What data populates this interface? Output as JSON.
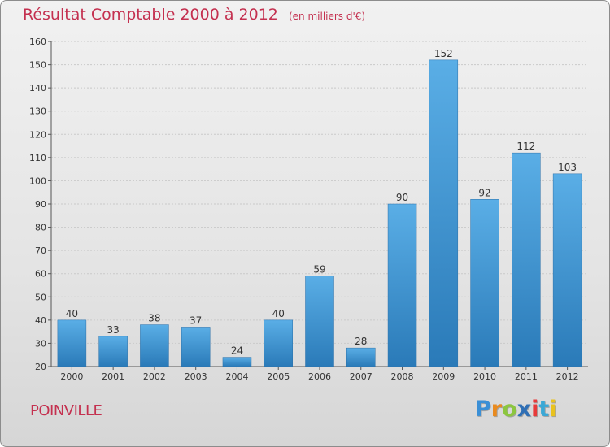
{
  "chart_data": {
    "type": "bar",
    "title": "Résultat Comptable 2000 à 2012",
    "unit_note": "(en milliers d'€)",
    "categories": [
      "2000",
      "2001",
      "2002",
      "2003",
      "2004",
      "2005",
      "2006",
      "2007",
      "2008",
      "2009",
      "2010",
      "2011",
      "2012"
    ],
    "values": [
      40,
      33,
      38,
      37,
      24,
      40,
      59,
      28,
      90,
      152,
      92,
      112,
      103
    ],
    "ylim": [
      20,
      160
    ],
    "yticks": [
      20,
      30,
      40,
      50,
      60,
      70,
      80,
      90,
      100,
      110,
      120,
      130,
      140,
      150,
      160
    ],
    "xlabel": "",
    "ylabel": "",
    "grid": true,
    "bar_color_top": "#5aaee6",
    "bar_color_bottom": "#2a7ab8"
  },
  "commune": "POINVILLE",
  "logo": {
    "text": "Proxiti",
    "letters": [
      {
        "ch": "P",
        "color": "#3a8fd6"
      },
      {
        "ch": "r",
        "color": "#e98a1e"
      },
      {
        "ch": "o",
        "color": "#8cc63f"
      },
      {
        "ch": "x",
        "color": "#2f6fb5"
      },
      {
        "ch": "i",
        "color": "#e83a3a"
      },
      {
        "ch": "t",
        "color": "#3aa8d6"
      },
      {
        "ch": "i",
        "color": "#e9c21e"
      }
    ]
  }
}
